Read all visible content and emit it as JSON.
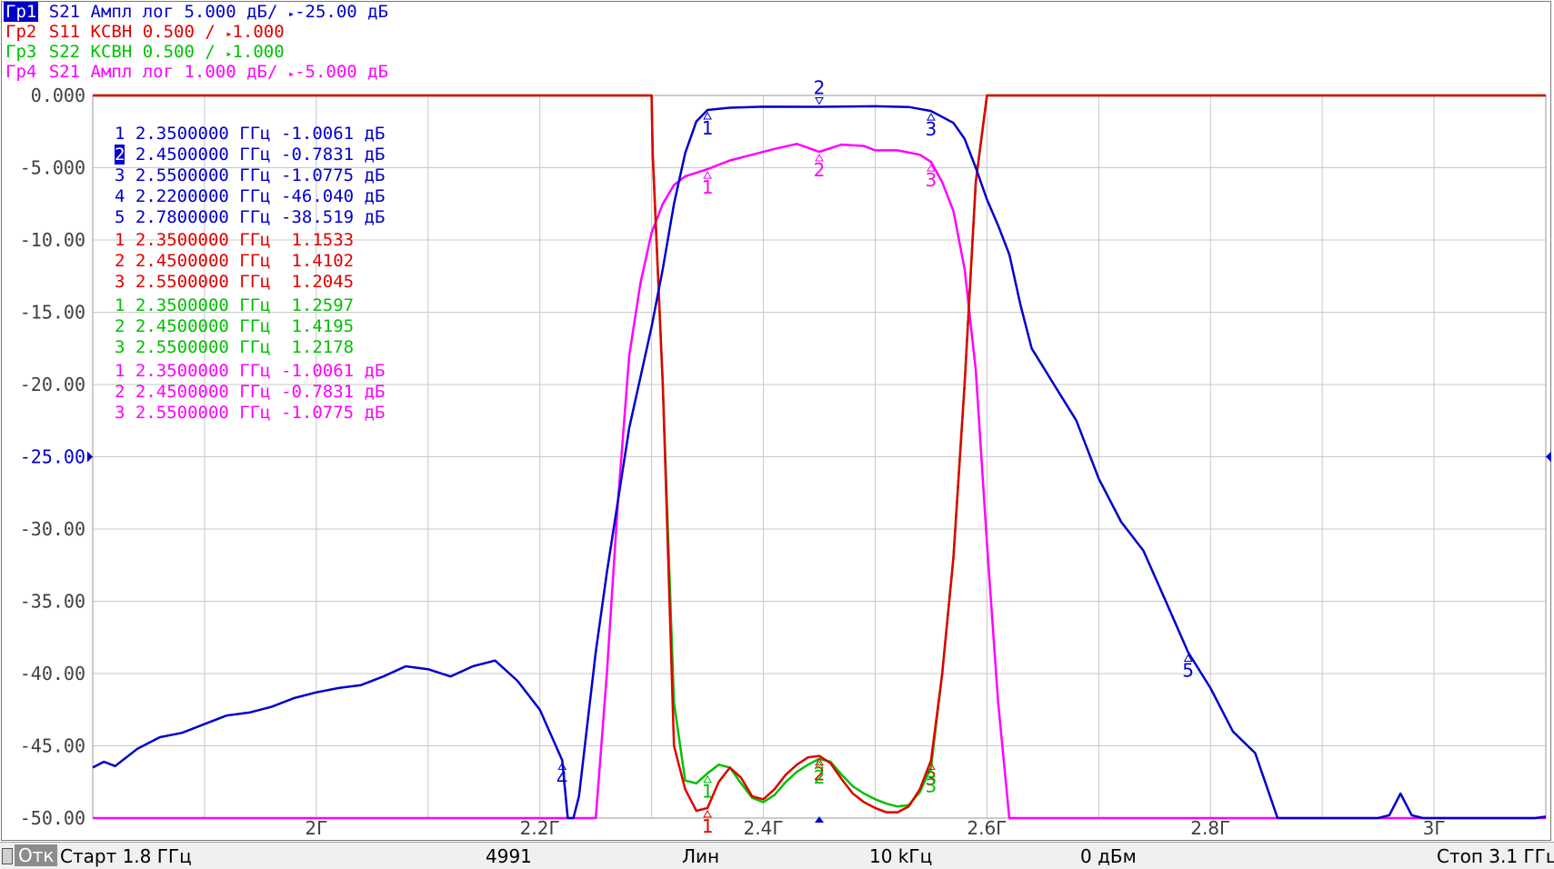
{
  "traces": [
    {
      "id": "tr1",
      "tag": "Гр1",
      "desc": "S21 Ампл лог 5.000 дБ/ ",
      "ref": "-25.00 дБ",
      "color": "#0000cc",
      "active": true
    },
    {
      "id": "tr2",
      "tag": "Гр2",
      "desc": "S11 КСВН 0.500 / ",
      "ref": "1.000",
      "color": "#e00000",
      "active": false
    },
    {
      "id": "tr3",
      "tag": "Гр3",
      "desc": "S22 КСВН 0.500 / ",
      "ref": "1.000",
      "color": "#00c000",
      "active": false
    },
    {
      "id": "tr4",
      "tag": "Гр4",
      "desc": "S21 Ампл лог 1.000 дБ/ ",
      "ref": "-5.000 дБ",
      "color": "#ff00ff",
      "active": false
    }
  ],
  "markers": [
    {
      "num": "1",
      "freq": "2.3500000 ГГц",
      "val": "-1.0061 дБ",
      "color": "#0000cc",
      "active": false
    },
    {
      "num": "2",
      "freq": "2.4500000 ГГц",
      "val": "-0.7831 дБ",
      "color": "#0000cc",
      "active": true
    },
    {
      "num": "3",
      "freq": "2.5500000 ГГц",
      "val": "-1.0775 дБ",
      "color": "#0000cc",
      "active": false
    },
    {
      "num": "4",
      "freq": "2.2200000 ГГц",
      "val": "-46.040 дБ",
      "color": "#0000cc",
      "active": false
    },
    {
      "num": "5",
      "freq": "2.7800000 ГГц",
      "val": "-38.519 дБ",
      "color": "#0000cc",
      "active": false
    },
    {
      "num": "1",
      "freq": "2.3500000 ГГц",
      "val": " 1.1533",
      "color": "#e00000",
      "active": false
    },
    {
      "num": "2",
      "freq": "2.4500000 ГГц",
      "val": " 1.4102",
      "color": "#e00000",
      "active": false
    },
    {
      "num": "3",
      "freq": "2.5500000 ГГц",
      "val": " 1.2045",
      "color": "#e00000",
      "active": false
    },
    {
      "num": "1",
      "freq": "2.3500000 ГГц",
      "val": " 1.2597",
      "color": "#00c000",
      "active": false
    },
    {
      "num": "2",
      "freq": "2.4500000 ГГц",
      "val": " 1.4195",
      "color": "#00c000",
      "active": false
    },
    {
      "num": "3",
      "freq": "2.5500000 ГГц",
      "val": " 1.2178",
      "color": "#00c000",
      "active": false
    },
    {
      "num": "1",
      "freq": "2.3500000 ГГц",
      "val": "-1.0061 дБ",
      "color": "#ff00ff",
      "active": false
    },
    {
      "num": "2",
      "freq": "2.4500000 ГГц",
      "val": "-0.7831 дБ",
      "color": "#ff00ff",
      "active": false
    },
    {
      "num": "3",
      "freq": "2.5500000 ГГц",
      "val": "-1.0775 дБ",
      "color": "#ff00ff",
      "active": false
    }
  ],
  "status": {
    "mode": "Отк",
    "start": "Старт 1.8 ГГц",
    "points": "4991",
    "sweep": "Лин",
    "ifbw": "10 kГц",
    "power": "0 дБм",
    "stop": "Стоп 3.1 ГГц"
  },
  "chart_data": {
    "type": "line",
    "x_range": [
      1.8,
      3.1
    ],
    "x_unit": "ГГц",
    "x_tick_values": [
      2.0,
      2.2,
      2.4,
      2.6,
      2.8,
      3.0
    ],
    "x_tick_labels": [
      "2Г",
      "2.2Г",
      "2.4Г",
      "2.6Г",
      "2.8Г",
      "3Г"
    ],
    "y_range": [
      -50,
      0
    ],
    "y_tick_values": [
      0,
      -5,
      -10,
      -15,
      -20,
      -25,
      -30,
      -35,
      -40,
      -45,
      -50
    ],
    "y_tick_labels": [
      "0.000",
      "-5.000",
      "-10.00",
      "-15.00",
      "-20.00",
      "-25.00",
      "-30.00",
      "-35.00",
      "-40.00",
      "-45.00",
      "-50.00"
    ],
    "grid": true,
    "series": [
      {
        "name": "Гр1",
        "color": "#0000cc",
        "points": [
          [
            1.8,
            -46.5
          ],
          [
            1.81,
            -46.1
          ],
          [
            1.82,
            -46.4
          ],
          [
            1.84,
            -45.2
          ],
          [
            1.86,
            -44.4
          ],
          [
            1.88,
            -44.1
          ],
          [
            1.9,
            -43.5
          ],
          [
            1.92,
            -42.9
          ],
          [
            1.94,
            -42.7
          ],
          [
            1.96,
            -42.3
          ],
          [
            1.98,
            -41.7
          ],
          [
            2.0,
            -41.3
          ],
          [
            2.02,
            -41.0
          ],
          [
            2.04,
            -40.8
          ],
          [
            2.06,
            -40.2
          ],
          [
            2.08,
            -39.5
          ],
          [
            2.1,
            -39.7
          ],
          [
            2.12,
            -40.2
          ],
          [
            2.14,
            -39.5
          ],
          [
            2.16,
            -39.1
          ],
          [
            2.18,
            -40.5
          ],
          [
            2.2,
            -42.5
          ],
          [
            2.22,
            -46.0
          ],
          [
            2.225,
            -50.0
          ],
          [
            2.23,
            -50.0
          ],
          [
            2.235,
            -48.5
          ],
          [
            2.25,
            -38.5
          ],
          [
            2.26,
            -33.0
          ],
          [
            2.27,
            -28.0
          ],
          [
            2.28,
            -23.0
          ],
          [
            2.29,
            -19.5
          ],
          [
            2.3,
            -16.0
          ],
          [
            2.31,
            -12.0
          ],
          [
            2.32,
            -7.5
          ],
          [
            2.33,
            -4.0
          ],
          [
            2.34,
            -1.8
          ],
          [
            2.35,
            -1.0061
          ],
          [
            2.37,
            -0.85
          ],
          [
            2.4,
            -0.78
          ],
          [
            2.45,
            -0.7831
          ],
          [
            2.5,
            -0.75
          ],
          [
            2.53,
            -0.8
          ],
          [
            2.55,
            -1.0775
          ],
          [
            2.57,
            -1.9
          ],
          [
            2.58,
            -3.0
          ],
          [
            2.59,
            -5.0
          ],
          [
            2.6,
            -7.2
          ],
          [
            2.61,
            -9.0
          ],
          [
            2.62,
            -11.0
          ],
          [
            2.63,
            -14.5
          ],
          [
            2.64,
            -17.5
          ],
          [
            2.66,
            -20.0
          ],
          [
            2.68,
            -22.5
          ],
          [
            2.7,
            -26.5
          ],
          [
            2.72,
            -29.5
          ],
          [
            2.74,
            -31.5
          ],
          [
            2.76,
            -35.0
          ],
          [
            2.78,
            -38.519
          ],
          [
            2.8,
            -41.0
          ],
          [
            2.82,
            -44.0
          ],
          [
            2.84,
            -45.5
          ],
          [
            2.86,
            -50.0
          ],
          [
            2.95,
            -50.0
          ],
          [
            2.96,
            -49.8
          ],
          [
            2.97,
            -48.3
          ],
          [
            2.98,
            -49.8
          ],
          [
            2.99,
            -50.0
          ],
          [
            3.09,
            -50.0
          ],
          [
            3.1,
            -49.9
          ]
        ]
      },
      {
        "name": "Гр2",
        "color": "#e00000",
        "points": [
          [
            1.8,
            0
          ],
          [
            2.3,
            0
          ],
          [
            2.301,
            -4
          ],
          [
            2.31,
            -20
          ],
          [
            2.32,
            -45
          ],
          [
            2.33,
            -48
          ],
          [
            2.34,
            -49.5
          ],
          [
            2.35,
            -49.3
          ],
          [
            2.36,
            -47.5
          ],
          [
            2.37,
            -46.5
          ],
          [
            2.38,
            -47.2
          ],
          [
            2.39,
            -48.5
          ],
          [
            2.4,
            -48.7
          ],
          [
            2.41,
            -48.0
          ],
          [
            2.42,
            -47.0
          ],
          [
            2.43,
            -46.3
          ],
          [
            2.44,
            -45.8
          ],
          [
            2.45,
            -45.7
          ],
          [
            2.46,
            -46.2
          ],
          [
            2.47,
            -47.3
          ],
          [
            2.48,
            -48.3
          ],
          [
            2.49,
            -48.9
          ],
          [
            2.5,
            -49.3
          ],
          [
            2.51,
            -49.6
          ],
          [
            2.52,
            -49.6
          ],
          [
            2.53,
            -49.2
          ],
          [
            2.54,
            -48.0
          ],
          [
            2.55,
            -46.0
          ],
          [
            2.56,
            -40
          ],
          [
            2.57,
            -32
          ],
          [
            2.58,
            -20
          ],
          [
            2.59,
            -6
          ],
          [
            2.6,
            0
          ],
          [
            3.1,
            0
          ]
        ]
      },
      {
        "name": "Гр3",
        "color": "#00c000",
        "points": [
          [
            1.8,
            0
          ],
          [
            2.3,
            0
          ],
          [
            2.301,
            -4
          ],
          [
            2.31,
            -20
          ],
          [
            2.32,
            -42
          ],
          [
            2.33,
            -47.4
          ],
          [
            2.34,
            -47.6
          ],
          [
            2.35,
            -46.9
          ],
          [
            2.36,
            -46.3
          ],
          [
            2.37,
            -46.5
          ],
          [
            2.38,
            -47.6
          ],
          [
            2.39,
            -48.6
          ],
          [
            2.4,
            -48.9
          ],
          [
            2.41,
            -48.4
          ],
          [
            2.42,
            -47.5
          ],
          [
            2.43,
            -46.8
          ],
          [
            2.44,
            -46.3
          ],
          [
            2.45,
            -45.9
          ],
          [
            2.46,
            -46.1
          ],
          [
            2.47,
            -47.0
          ],
          [
            2.48,
            -47.8
          ],
          [
            2.49,
            -48.3
          ],
          [
            2.5,
            -48.7
          ],
          [
            2.51,
            -49.0
          ],
          [
            2.52,
            -49.2
          ],
          [
            2.53,
            -49.1
          ],
          [
            2.54,
            -48.2
          ],
          [
            2.55,
            -46.5
          ],
          [
            2.56,
            -40
          ],
          [
            2.57,
            -32
          ],
          [
            2.58,
            -20
          ],
          [
            2.59,
            -6
          ],
          [
            2.6,
            0
          ],
          [
            3.1,
            0
          ]
        ]
      },
      {
        "name": "Гр4",
        "color": "#ff00ff",
        "points": [
          [
            1.8,
            -50
          ],
          [
            2.25,
            -50
          ],
          [
            2.26,
            -40
          ],
          [
            2.27,
            -28
          ],
          [
            2.28,
            -18
          ],
          [
            2.29,
            -13
          ],
          [
            2.3,
            -9.5
          ],
          [
            2.31,
            -7.5
          ],
          [
            2.32,
            -6.2
          ],
          [
            2.33,
            -5.6
          ],
          [
            2.35,
            -5.1
          ],
          [
            2.37,
            -4.5
          ],
          [
            2.39,
            -4.1
          ],
          [
            2.41,
            -3.7
          ],
          [
            2.43,
            -3.35
          ],
          [
            2.45,
            -3.9
          ],
          [
            2.47,
            -3.4
          ],
          [
            2.49,
            -3.5
          ],
          [
            2.5,
            -3.8
          ],
          [
            2.52,
            -3.8
          ],
          [
            2.54,
            -4.1
          ],
          [
            2.55,
            -4.6
          ],
          [
            2.56,
            -6.0
          ],
          [
            2.57,
            -8.0
          ],
          [
            2.58,
            -12.0
          ],
          [
            2.59,
            -19.0
          ],
          [
            2.6,
            -31.0
          ],
          [
            2.61,
            -42.0
          ],
          [
            2.62,
            -50
          ],
          [
            3.1,
            -50
          ]
        ]
      }
    ]
  }
}
